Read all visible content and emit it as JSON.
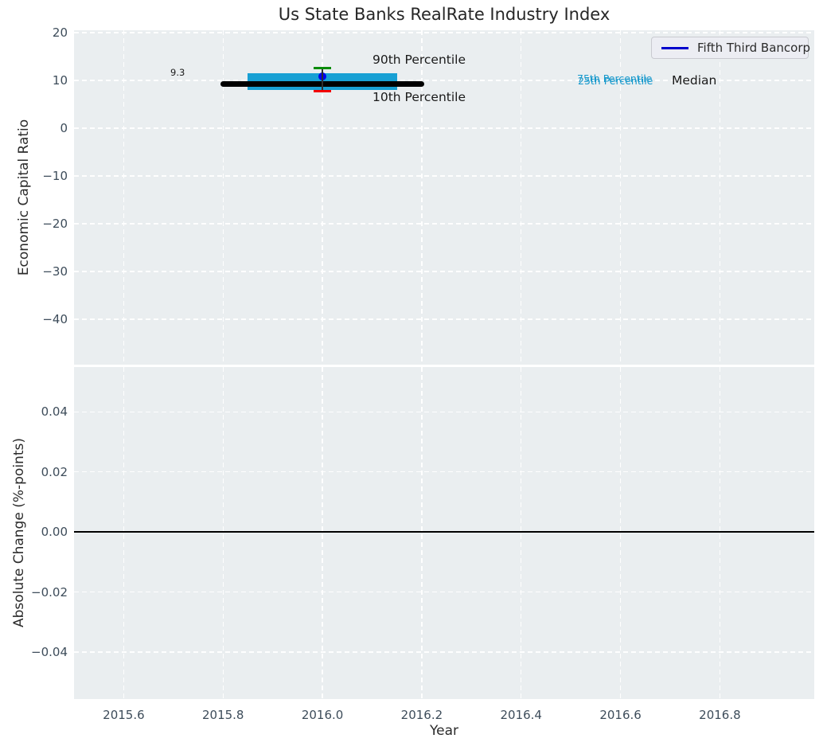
{
  "title": "Us State Banks RealRate Industry Index",
  "legend": {
    "position": "upper right",
    "entries": [
      {
        "label": "Fifth Third Bancorp",
        "line_color": "#0000cc"
      }
    ]
  },
  "style": {
    "figure_background": "#ffffff",
    "plot_background": "#eaeef0",
    "grid_color": "#ffffff",
    "tick_label_color": "#3d4c5a"
  },
  "chart_data": [
    {
      "type": "line",
      "subplot": "top",
      "title": "Us State Banks RealRate Industry Index",
      "ylabel": "Economic Capital Ratio",
      "xlabel": "",
      "grid": true,
      "grid_style": "white dashed",
      "xlim": [
        2015.5,
        2016.99
      ],
      "ylim": [
        -49.5,
        20.5
      ],
      "xticks": {
        "values": [
          2015.6,
          2015.8,
          2016.0,
          2016.2,
          2016.4,
          2016.6,
          2016.8
        ],
        "labels": [
          "2015.6",
          "2015.8",
          "2016.0",
          "2016.2",
          "2016.4",
          "2016.6",
          "2016.8"
        ],
        "labels_visible": false
      },
      "yticks": {
        "values": [
          20,
          10,
          0,
          -10,
          -20,
          -30,
          -40
        ],
        "labels": [
          "20",
          "10",
          "0",
          "−10",
          "−20",
          "−30",
          "−40"
        ],
        "labels_visible": true
      },
      "series": [
        {
          "name": "Interquartile band (25th-75th percentile)",
          "type": "band",
          "color": "#18a0d4",
          "x": [
            2015.85,
            2016.15
          ],
          "y_low": 8.0,
          "y_high": 11.5
        },
        {
          "name": "Median",
          "type": "hline-segment",
          "color": "#000000",
          "x": [
            2015.8,
            2016.2
          ],
          "y": 9.3
        },
        {
          "name": "Fifth Third Bancorp",
          "type": "point",
          "color": "#0000ee",
          "x": 2016.0,
          "y": 10.8
        },
        {
          "name": "90th Percentile",
          "type": "cap",
          "color": "#0a8c0a",
          "x": 2016.0,
          "y": 12.6
        },
        {
          "name": "10th Percentile",
          "type": "cap",
          "color": "#f20000",
          "x": 2016.0,
          "y": 7.8
        }
      ],
      "whisker": {
        "x": 2016.0,
        "y_from": 7.8,
        "y_to": 12.6,
        "color": "#2f2f2f"
      },
      "annotations": [
        {
          "text": "9.3",
          "color": "#1a1a1a"
        },
        {
          "text": "90th Percentile",
          "color": "#1a1a1a"
        },
        {
          "text": "10th Percentile",
          "color": "#1a1a1a"
        },
        {
          "text": "75th Percentile",
          "color": "#1899cc"
        },
        {
          "text": "25th Percentile",
          "color": "#1899cc"
        },
        {
          "text": "Median",
          "color": "#1a1a1a"
        }
      ]
    },
    {
      "type": "line",
      "subplot": "bottom",
      "title": "",
      "ylabel": "Absolute Change (%-points)",
      "xlabel": "Year",
      "grid": true,
      "grid_style": "white dashed",
      "xlim": [
        2015.5,
        2016.99
      ],
      "ylim": [
        -0.0556,
        0.0549
      ],
      "xticks": {
        "values": [
          2015.6,
          2015.8,
          2016.0,
          2016.2,
          2016.4,
          2016.6,
          2016.8
        ],
        "labels": [
          "2015.6",
          "2015.8",
          "2016.0",
          "2016.2",
          "2016.4",
          "2016.6",
          "2016.8"
        ],
        "labels_visible": true
      },
      "yticks": {
        "values": [
          0.04,
          0.02,
          0.0,
          -0.02,
          -0.04
        ],
        "labels": [
          "0.04",
          "0.02",
          "0.00",
          "−0.02",
          "−0.04"
        ],
        "labels_visible": true
      },
      "series": [
        {
          "name": "zero line",
          "type": "hline",
          "color": "#000000",
          "y": 0.0
        }
      ],
      "annotations": []
    }
  ]
}
